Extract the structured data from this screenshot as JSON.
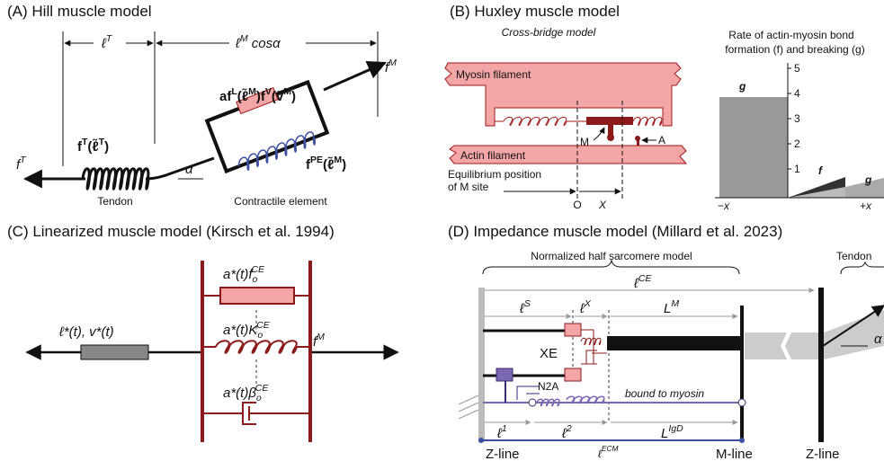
{
  "panel_a": {
    "title": "(A) Hill muscle model",
    "tendon_length": [
      {
        "text": "ℓ"
      },
      {
        "sup": "T"
      }
    ],
    "fiber_length": [
      {
        "text": "ℓ"
      },
      {
        "sup": "M"
      },
      {
        "text": " cosα"
      }
    ],
    "fiber_force": [
      {
        "text": "f"
      },
      {
        "sup": "M"
      }
    ],
    "tendon_force": [
      {
        "text": "f"
      },
      {
        "sup": "T"
      }
    ],
    "active_element": [
      {
        "text": "af"
      },
      {
        "sup": "L"
      },
      {
        "text": "(ℓ̃"
      },
      {
        "sup": "M"
      },
      {
        "text": ")f"
      },
      {
        "sup": "V"
      },
      {
        "text": "(ṽ"
      },
      {
        "sup": "M"
      },
      {
        "text": ")"
      }
    ],
    "tendon_element": [
      {
        "text": "f"
      },
      {
        "sup": "T"
      },
      {
        "text": "(ℓ̃"
      },
      {
        "sup": "T"
      },
      {
        "text": ")"
      }
    ],
    "passive_element": [
      {
        "text": "f"
      },
      {
        "sup": "PE"
      },
      {
        "text": "(ℓ̃"
      },
      {
        "sup": "M"
      },
      {
        "text": ")"
      }
    ],
    "pennation": "α",
    "tendon_label": "Tendon",
    "ce_label": "Contractile element"
  },
  "panel_b": {
    "title": "(B) Huxley muscle model",
    "subtitle": "Cross-bridge model",
    "myosin": "Myosin filament",
    "actin": "Actin filament",
    "m_site": "M",
    "a_site": "A",
    "equilibrium": [
      "Equilibrium position",
      "of M site"
    ],
    "origin": "O",
    "x_label": "X",
    "rate_title": [
      "Rate of actin-myosin bond",
      "formation (f) and breaking (g)"
    ],
    "rate_ticks": [
      "1",
      "2",
      "3",
      "4",
      "5"
    ],
    "g_left": "g",
    "f_right": "f",
    "g_right": "g",
    "minus_x": "−x",
    "plus_x": "+x"
  },
  "panel_c": {
    "title": "(C) Linearized muscle model (Kirsch et al. 1994)",
    "active_force": [
      {
        "text": "a*(t)f"
      },
      {
        "sub": "o"
      },
      {
        "sup": "CE"
      }
    ],
    "stiffness": [
      {
        "text": "a*(t)K"
      },
      {
        "sub": "o"
      },
      {
        "sup": "CE"
      }
    ],
    "damping": [
      {
        "text": "a*(t)β"
      },
      {
        "sub": "o"
      },
      {
        "sup": "CE"
      }
    ],
    "input": "ℓ*(t), v*(t)",
    "output": [
      {
        "text": "f"
      },
      {
        "sup": "M"
      }
    ]
  },
  "panel_d": {
    "title": "(D) Impedance muscle model (Millard et al. 2023)",
    "half_sarcomere": "Normalized half sarcomere model",
    "tendon": "Tendon",
    "l_ce": [
      {
        "text": "ℓ"
      },
      {
        "sup": "CE"
      }
    ],
    "l_s": [
      {
        "text": "ℓ"
      },
      {
        "sup": "S"
      }
    ],
    "l_x": [
      {
        "text": "ℓ"
      },
      {
        "sup": "X"
      }
    ],
    "l_m": [
      {
        "text": "L"
      },
      {
        "sup": "M"
      }
    ],
    "xe": "XE",
    "n2a": "N2A",
    "bound": "bound to myosin",
    "l_1": [
      {
        "text": "ℓ"
      },
      {
        "sup": "1"
      }
    ],
    "l_2": [
      {
        "text": "ℓ"
      },
      {
        "sup": "2"
      }
    ],
    "l_igd": [
      {
        "text": "L"
      },
      {
        "sup": "IgD"
      }
    ],
    "l_ecm": [
      {
        "text": "ℓ"
      },
      {
        "sup": "ECM"
      }
    ],
    "z_line_left": "Z-line",
    "m_line": "M-line",
    "z_line_right": "Z-line",
    "alpha": "α"
  }
}
